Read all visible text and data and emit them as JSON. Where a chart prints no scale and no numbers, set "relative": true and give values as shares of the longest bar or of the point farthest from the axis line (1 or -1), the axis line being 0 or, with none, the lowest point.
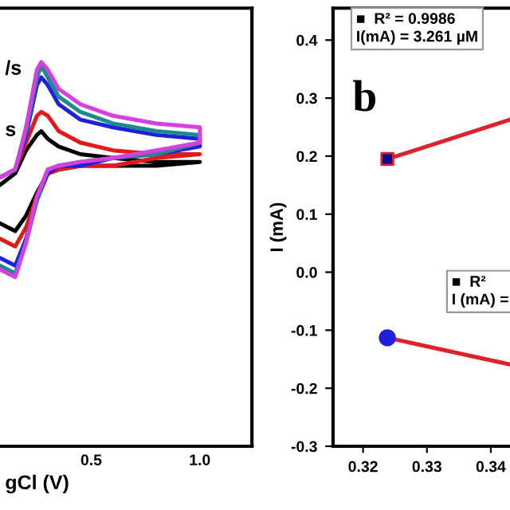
{
  "chart_data": [
    {
      "type": "line",
      "relative": true,
      "xlabel": "gCl (V)",
      "xlim": [
        0.08,
        1.24
      ],
      "xticks": [
        0.5,
        {
          "value": 1.0,
          "label": "1.0"
        }
      ],
      "tick_labels": "x",
      "grid": false,
      "legend": false,
      "annotations": [
        "/s",
        "s"
      ],
      "series": [
        {
          "color": "#000000",
          "x": [
            0.08,
            0.15,
            0.2,
            0.25,
            0.27,
            0.3,
            0.35,
            0.45,
            0.6,
            0.8,
            1.0,
            1.0,
            0.8,
            0.6,
            0.45,
            0.35,
            0.3,
            0.25,
            0.2,
            0.15,
            0.08
          ],
          "values": [
            0.68,
            0.71,
            0.77,
            0.81,
            0.82,
            0.8,
            0.78,
            0.76,
            0.75,
            0.74,
            0.74,
            0.74,
            0.73,
            0.73,
            0.73,
            0.72,
            0.71,
            0.66,
            0.6,
            0.56,
            0.58
          ]
        },
        {
          "color": "#e31a1c",
          "x": [
            0.08,
            0.15,
            0.2,
            0.25,
            0.27,
            0.3,
            0.35,
            0.45,
            0.6,
            0.8,
            1.0,
            1.0,
            0.8,
            0.6,
            0.45,
            0.35,
            0.3,
            0.25,
            0.2,
            0.15,
            0.08
          ],
          "values": [
            0.7,
            0.72,
            0.79,
            0.86,
            0.87,
            0.86,
            0.82,
            0.79,
            0.77,
            0.76,
            0.76,
            0.76,
            0.75,
            0.73,
            0.73,
            0.72,
            0.71,
            0.65,
            0.57,
            0.52,
            0.54
          ]
        },
        {
          "color": "#1f1fe0",
          "x": [
            0.08,
            0.15,
            0.2,
            0.25,
            0.27,
            0.3,
            0.35,
            0.45,
            0.6,
            0.8,
            1.0,
            1.0,
            0.8,
            0.6,
            0.45,
            0.35,
            0.3,
            0.25,
            0.2,
            0.15,
            0.08
          ],
          "values": [
            0.7,
            0.72,
            0.81,
            0.94,
            0.96,
            0.94,
            0.89,
            0.85,
            0.83,
            0.81,
            0.8,
            0.78,
            0.76,
            0.75,
            0.73,
            0.73,
            0.71,
            0.64,
            0.54,
            0.47,
            0.49
          ]
        },
        {
          "color": "#1a8a8a",
          "x": [
            0.08,
            0.15,
            0.2,
            0.25,
            0.27,
            0.3,
            0.35,
            0.45,
            0.6,
            0.8,
            1.0,
            1.0,
            0.8,
            0.6,
            0.45,
            0.35,
            0.3,
            0.25,
            0.2,
            0.15,
            0.08
          ],
          "values": [
            0.7,
            0.72,
            0.82,
            0.96,
            0.99,
            0.96,
            0.91,
            0.87,
            0.84,
            0.82,
            0.81,
            0.79,
            0.76,
            0.75,
            0.74,
            0.73,
            0.72,
            0.64,
            0.53,
            0.45,
            0.47
          ]
        },
        {
          "color": "#d63fe0",
          "x": [
            0.08,
            0.15,
            0.2,
            0.25,
            0.27,
            0.3,
            0.35,
            0.45,
            0.6,
            0.8,
            1.0,
            1.0,
            0.8,
            0.6,
            0.45,
            0.35,
            0.3,
            0.25,
            0.2,
            0.15,
            0.08
          ],
          "values": [
            0.7,
            0.72,
            0.83,
            0.98,
            1.0,
            0.98,
            0.93,
            0.89,
            0.86,
            0.84,
            0.83,
            0.79,
            0.77,
            0.75,
            0.74,
            0.73,
            0.72,
            0.65,
            0.53,
            0.44,
            0.46
          ]
        }
      ]
    },
    {
      "type": "scatter",
      "ylabel": "I (mA)",
      "xlim": [
        0.3153,
        0.343
      ],
      "ylim": [
        -0.3,
        0.455
      ],
      "xticks": [
        0.32,
        0.33,
        0.34
      ],
      "yticks": [
        -0.3,
        -0.2,
        -0.1,
        {
          "value": 0.0,
          "label": "0.0"
        },
        0.1,
        0.2,
        0.3,
        0.4
      ],
      "grid": false,
      "legend": false,
      "annotations": [
        "b",
        "■  R² = 0.9986\nI(mA) = 3.261 µM",
        "■  R²\nI (mA) ="
      ],
      "series": [
        {
          "type": "scatter",
          "marker": "square",
          "color": "#0a0a8c",
          "x": [
            0.3238
          ],
          "values": [
            0.195
          ]
        },
        {
          "type": "scatter",
          "marker": "circle",
          "color": "#1f1fe0",
          "x": [
            0.3238
          ],
          "values": [
            -0.113
          ]
        },
        {
          "type": "line",
          "marker": "none",
          "color": "#e0202a",
          "x": [
            0.3238,
            0.343
          ],
          "values": [
            0.195,
            0.263
          ]
        },
        {
          "type": "line",
          "marker": "none",
          "color": "#e0202a",
          "x": [
            0.3238,
            0.343
          ],
          "values": [
            -0.113,
            -0.159
          ]
        }
      ]
    }
  ]
}
